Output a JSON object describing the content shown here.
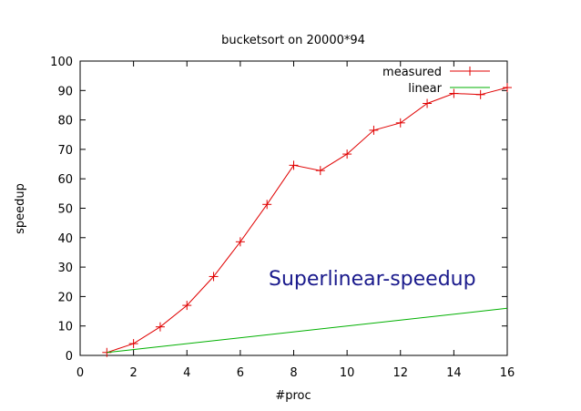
{
  "chart_data": {
    "type": "line",
    "title": "bucketsort on 20000*94",
    "xlabel": "#proc",
    "ylabel": "speedup",
    "xlim": [
      0,
      16
    ],
    "ylim": [
      0,
      100
    ],
    "xticks": [
      0,
      2,
      4,
      6,
      8,
      10,
      12,
      14,
      16
    ],
    "yticks": [
      0,
      10,
      20,
      30,
      40,
      50,
      60,
      70,
      80,
      90,
      100
    ],
    "legend_position": "top-right",
    "grid": false,
    "annotation": "Superlinear-speedup",
    "series": [
      {
        "name": "measured",
        "color": "#e00000",
        "marker": "plus",
        "x": [
          1,
          2,
          3,
          4,
          5,
          6,
          7,
          8,
          9,
          10,
          11,
          12,
          13,
          14,
          15,
          16
        ],
        "y": [
          1,
          4,
          9.7,
          17,
          26.8,
          38.6,
          51.3,
          64.6,
          62.8,
          68.4,
          76.5,
          79,
          85.6,
          89,
          88.6,
          91
        ]
      },
      {
        "name": "linear",
        "color": "#00b000",
        "marker": "none",
        "x": [
          1,
          16
        ],
        "y": [
          1,
          16
        ]
      }
    ]
  }
}
